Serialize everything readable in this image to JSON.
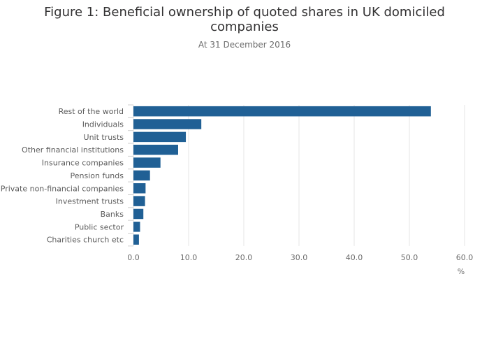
{
  "title_line1": "Figure 1: Beneficial ownership of quoted shares in UK domiciled",
  "title_line2": "companies",
  "subtitle": "At 31 December 2016",
  "chart_data": {
    "type": "bar",
    "orientation": "horizontal",
    "categories": [
      "Rest of the world",
      "Individuals",
      "Unit trusts",
      "Other financial institutions",
      "Insurance companies",
      "Pension funds",
      "Private non-financial companies",
      "Investment trusts",
      "Banks",
      "Public sector",
      "Charities church etc"
    ],
    "values": [
      53.9,
      12.3,
      9.5,
      8.1,
      4.9,
      3.0,
      2.2,
      2.1,
      1.8,
      1.2,
      1.0
    ],
    "xlabel": "%",
    "xlim": [
      0,
      60
    ],
    "xticks": [
      "0.0",
      "10.0",
      "20.0",
      "30.0",
      "40.0",
      "50.0",
      "60.0"
    ],
    "grid": "vertical",
    "bar_color": "#206095"
  }
}
